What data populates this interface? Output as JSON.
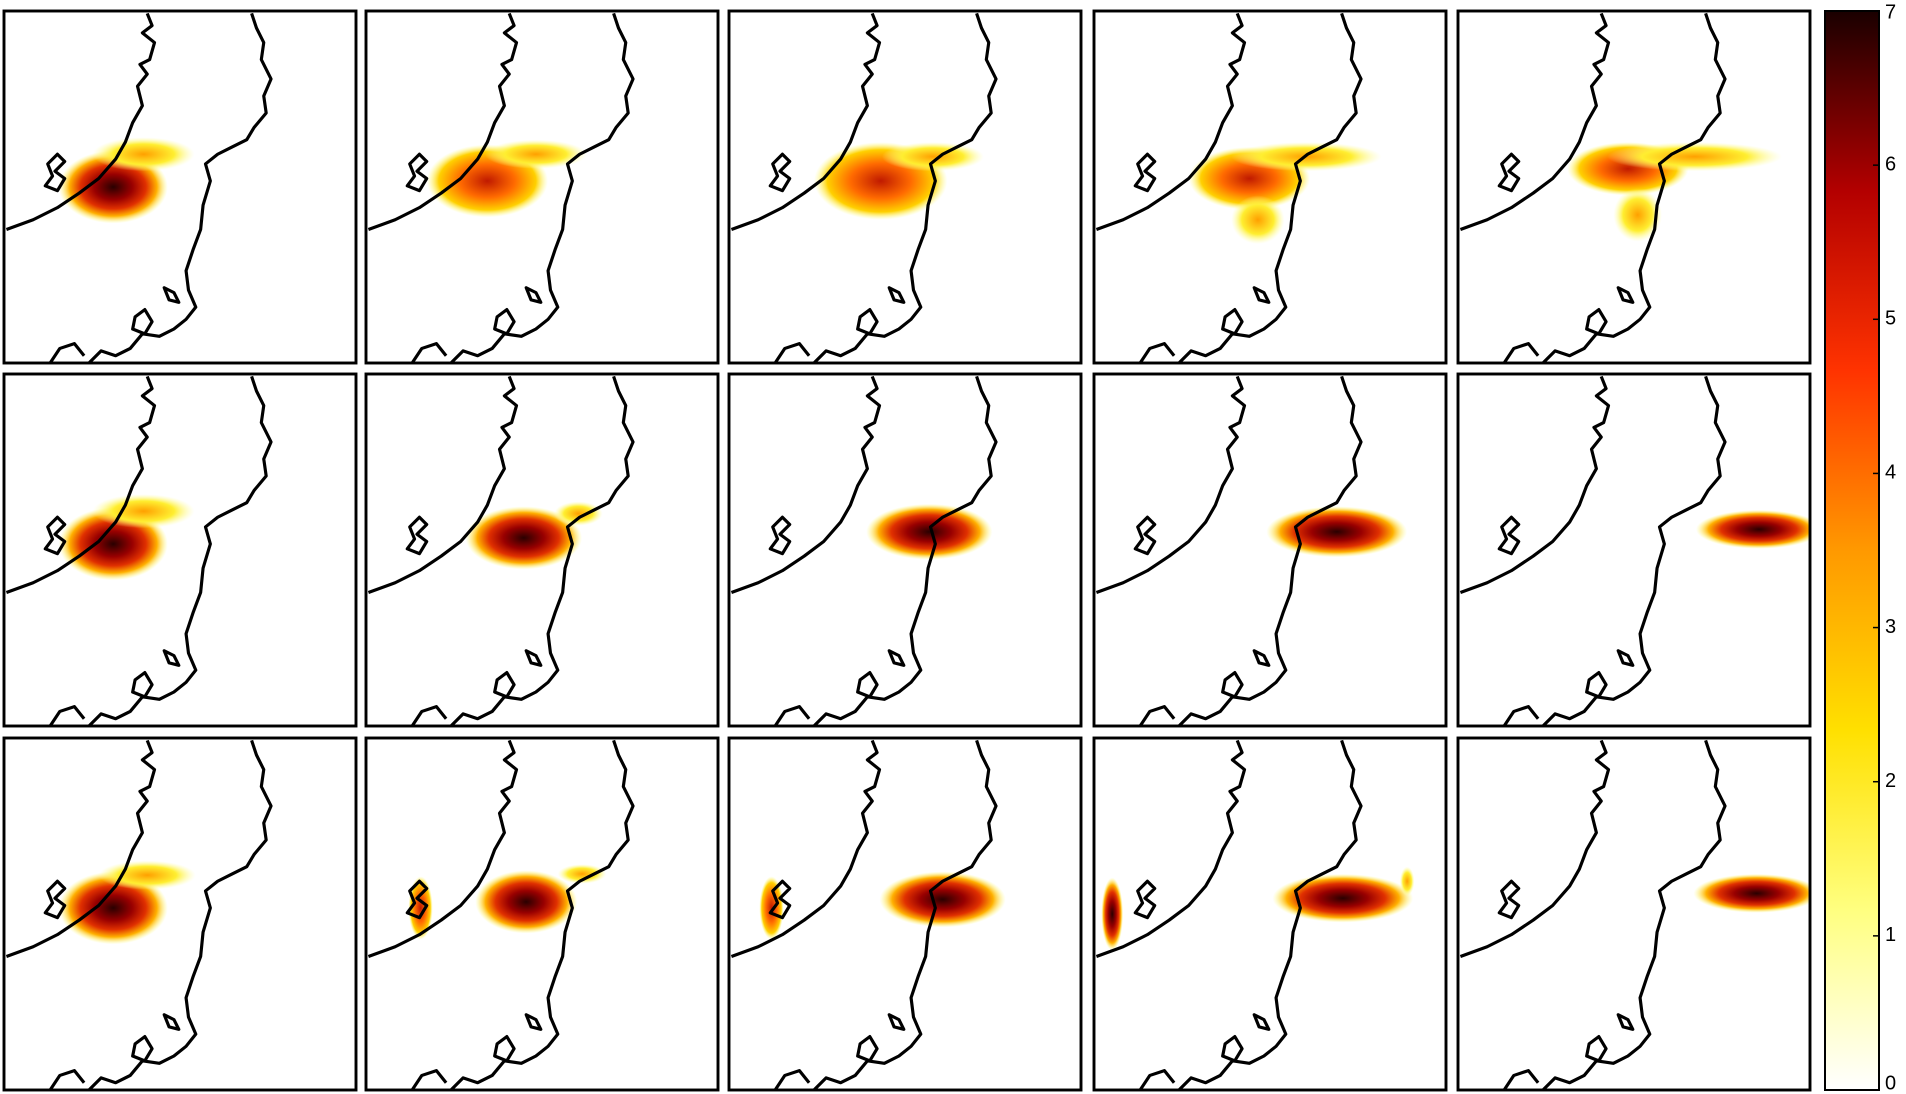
{
  "chart_data": {
    "type": "colorbar",
    "clim": [
      0,
      7
    ],
    "ticks": [
      0,
      1,
      2,
      3,
      4,
      5,
      6,
      7
    ],
    "colormap": [
      "#ffffff",
      "#ffff80",
      "#ffe000",
      "#ff9900",
      "#ff3300",
      "#b30000",
      "#1a0000"
    ]
  }
}
